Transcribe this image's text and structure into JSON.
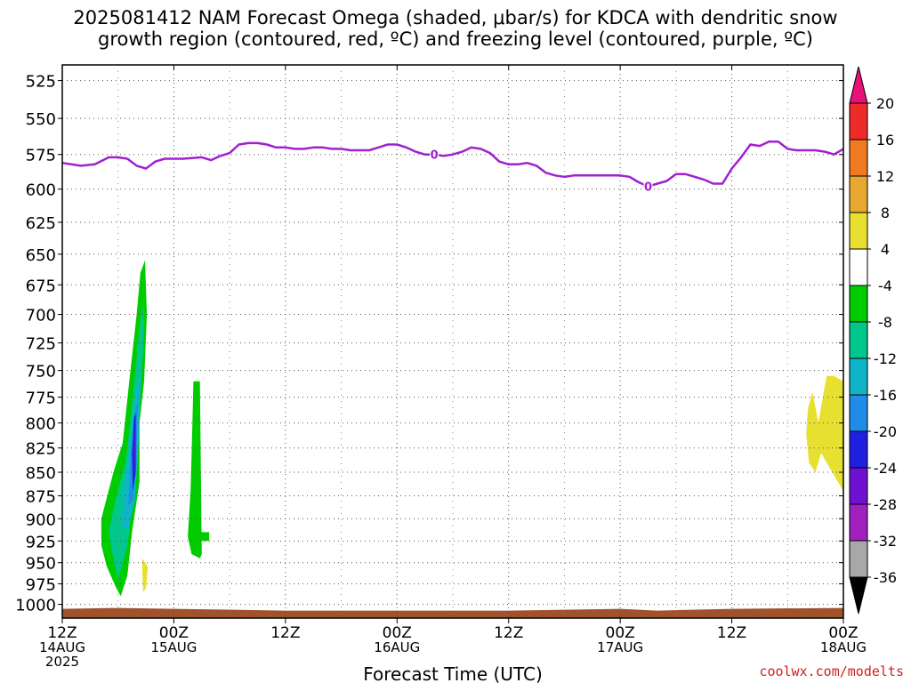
{
  "title_line1": "2025081412 NAM Forecast Omega (shaded, μbar/s) for KDCA with dendritic snow",
  "title_line2": "growth region (contoured, red, ºC) and freezing level (contoured, purple, ºC)",
  "credit": "coolwx.com/modelts",
  "chart_data": {
    "type": "time-height contour",
    "xlabel": "Forecast Time (UTC)",
    "ylabel": "",
    "x_range_hours": [
      0,
      84
    ],
    "x_ticks": [
      {
        "hour": 0,
        "lines": [
          "12Z",
          "14AUG",
          "2025"
        ]
      },
      {
        "hour": 12,
        "lines": [
          "00Z",
          "15AUG"
        ]
      },
      {
        "hour": 24,
        "lines": [
          "12Z"
        ]
      },
      {
        "hour": 36,
        "lines": [
          "00Z",
          "16AUG"
        ]
      },
      {
        "hour": 48,
        "lines": [
          "12Z"
        ]
      },
      {
        "hour": 60,
        "lines": [
          "00Z",
          "17AUG"
        ]
      },
      {
        "hour": 72,
        "lines": [
          "12Z"
        ]
      },
      {
        "hour": 84,
        "lines": [
          "00Z",
          "18AUG"
        ]
      }
    ],
    "y_range_hPa": [
      515,
      1017
    ],
    "y_scale": "log",
    "y_ticks": [
      525,
      550,
      575,
      600,
      625,
      650,
      675,
      700,
      725,
      750,
      775,
      800,
      825,
      850,
      875,
      900,
      925,
      950,
      975,
      1000
    ],
    "grid": true,
    "colorbar": {
      "labels": [
        "20",
        "16",
        "12",
        "8",
        "4",
        "-4",
        "-8",
        "-12",
        "-16",
        "-20",
        "-24",
        "-28",
        "-32",
        "-36"
      ],
      "colors": [
        "#e8107a",
        "#ee2a2a",
        "#ef7a20",
        "#e8a830",
        "#e8e030",
        "#ffffff",
        "#00cc00",
        "#00c88c",
        "#10b4c8",
        "#1e8ce8",
        "#2020e0",
        "#7010d0",
        "#a020c0",
        "#a8a8a8",
        "#000000"
      ],
      "placement": "right"
    },
    "freezing_level": {
      "color": "#a020d0",
      "label": "0",
      "label_positions_hours": [
        40,
        63
      ],
      "points": [
        [
          0,
          581
        ],
        [
          2,
          583
        ],
        [
          3.5,
          582
        ],
        [
          5,
          577
        ],
        [
          6,
          577
        ],
        [
          7,
          578
        ],
        [
          8,
          583
        ],
        [
          9,
          585
        ],
        [
          10,
          580
        ],
        [
          11,
          578
        ],
        [
          13,
          578
        ],
        [
          15,
          577
        ],
        [
          16,
          579
        ],
        [
          17,
          576
        ],
        [
          18,
          574
        ],
        [
          19,
          568
        ],
        [
          20,
          567
        ],
        [
          21,
          567
        ],
        [
          22,
          568
        ],
        [
          23,
          570
        ],
        [
          24,
          570
        ],
        [
          25,
          571
        ],
        [
          26,
          571
        ],
        [
          27,
          570
        ],
        [
          28,
          570
        ],
        [
          29,
          571
        ],
        [
          30,
          571
        ],
        [
          31,
          572
        ],
        [
          32,
          572
        ],
        [
          33,
          572
        ],
        [
          34,
          570
        ],
        [
          35,
          568
        ],
        [
          36,
          568
        ],
        [
          37,
          570
        ],
        [
          38,
          573
        ],
        [
          39,
          575
        ],
        [
          40,
          575
        ],
        [
          41,
          576
        ],
        [
          42,
          575
        ],
        [
          43,
          573
        ],
        [
          44,
          570
        ],
        [
          45,
          571
        ],
        [
          46,
          574
        ],
        [
          47,
          580
        ],
        [
          48,
          582
        ],
        [
          49,
          582
        ],
        [
          50,
          581
        ],
        [
          51,
          583
        ],
        [
          52,
          588
        ],
        [
          53,
          590
        ],
        [
          54,
          591
        ],
        [
          55,
          590
        ],
        [
          56,
          590
        ],
        [
          57,
          590
        ],
        [
          58,
          590
        ],
        [
          59,
          590
        ],
        [
          60,
          590
        ],
        [
          61,
          591
        ],
        [
          62,
          595
        ],
        [
          63,
          598
        ],
        [
          64,
          596
        ],
        [
          65,
          594
        ],
        [
          66,
          589
        ],
        [
          67,
          589
        ],
        [
          68,
          591
        ],
        [
          69,
          593
        ],
        [
          70,
          596
        ],
        [
          71,
          596
        ],
        [
          72,
          585
        ],
        [
          73,
          577
        ],
        [
          74,
          568
        ],
        [
          75,
          569
        ],
        [
          76,
          566
        ],
        [
          77,
          566
        ],
        [
          78,
          571
        ],
        [
          79,
          572
        ],
        [
          80,
          572
        ],
        [
          81,
          572
        ],
        [
          82,
          573
        ],
        [
          83,
          575
        ],
        [
          84,
          571
        ]
      ]
    },
    "omega_regions": [
      {
        "level": -4,
        "color": "#00cc00",
        "points": [
          [
            8.9,
            655
          ],
          [
            9.1,
            700
          ],
          [
            8.8,
            760
          ],
          [
            8.3,
            800
          ],
          [
            8.3,
            860
          ],
          [
            7.5,
            915
          ],
          [
            7,
            965
          ],
          [
            6.3,
            990
          ],
          [
            5.8,
            980
          ],
          [
            4.8,
            955
          ],
          [
            4.2,
            930
          ],
          [
            4.2,
            900
          ],
          [
            5.5,
            850
          ],
          [
            6.5,
            820
          ],
          [
            7.2,
            760
          ],
          [
            8,
            700
          ],
          [
            8.4,
            665
          ]
        ]
      },
      {
        "level": -8,
        "color": "#00c88c",
        "points": [
          [
            8.8,
            685
          ],
          [
            8.7,
            730
          ],
          [
            8.3,
            790
          ],
          [
            8,
            830
          ],
          [
            7.8,
            860
          ],
          [
            7,
            930
          ],
          [
            6,
            970
          ],
          [
            5.4,
            940
          ],
          [
            5,
            915
          ],
          [
            5.7,
            880
          ],
          [
            6.8,
            840
          ],
          [
            7.6,
            775
          ],
          [
            8.2,
            720
          ]
        ]
      },
      {
        "level": -12,
        "color": "#10b4c8",
        "points": [
          [
            8.4,
            755
          ],
          [
            8.2,
            820
          ],
          [
            7.8,
            880
          ],
          [
            7.1,
            910
          ],
          [
            6.4,
            910
          ],
          [
            6.6,
            870
          ],
          [
            7.4,
            810
          ],
          [
            8,
            765
          ]
        ]
      },
      {
        "level": -16,
        "color": "#1e8ce8",
        "points": [
          [
            8.1,
            780
          ],
          [
            8,
            840
          ],
          [
            7.6,
            880
          ],
          [
            7.1,
            885
          ],
          [
            7.4,
            830
          ],
          [
            7.9,
            785
          ]
        ]
      },
      {
        "level": -20,
        "color": "#2020e0",
        "points": [
          [
            7.9,
            790
          ],
          [
            7.9,
            850
          ],
          [
            7.6,
            870
          ],
          [
            7.5,
            830
          ],
          [
            7.7,
            795
          ]
        ]
      },
      {
        "level": -24,
        "color": "#7010d0",
        "points": [
          [
            7.8,
            805
          ],
          [
            7.75,
            845
          ],
          [
            7.65,
            855
          ],
          [
            7.65,
            815
          ]
        ]
      },
      {
        "level": -4,
        "color": "#00cc00",
        "points": [
          [
            14.8,
            760
          ],
          [
            15,
            940
          ],
          [
            14.8,
            945
          ],
          [
            13.9,
            940
          ],
          [
            13.5,
            920
          ],
          [
            13.8,
            870
          ],
          [
            14,
            800
          ],
          [
            14.1,
            760
          ]
        ]
      },
      {
        "level": -4,
        "color": "#00cc00",
        "points": [
          [
            14.7,
            915
          ],
          [
            15.8,
            915
          ],
          [
            15.8,
            925
          ],
          [
            14.7,
            925
          ]
        ]
      },
      {
        "level": 4,
        "color": "#e8e030",
        "points": [
          [
            8.6,
            945
          ],
          [
            9.2,
            955
          ],
          [
            9,
            980
          ],
          [
            8.7,
            985
          ],
          [
            8.6,
            960
          ]
        ]
      },
      {
        "level": 4,
        "color": "#e8e030",
        "points": [
          [
            80.7,
            770
          ],
          [
            81.3,
            800
          ],
          [
            82.2,
            755
          ],
          [
            83,
            755
          ],
          [
            84,
            760
          ],
          [
            84,
            870
          ],
          [
            82.5,
            845
          ],
          [
            81.6,
            830
          ],
          [
            81,
            850
          ],
          [
            80.3,
            840
          ],
          [
            80,
            810
          ],
          [
            80.2,
            785
          ]
        ]
      }
    ],
    "surface_color": "#a0522d"
  }
}
